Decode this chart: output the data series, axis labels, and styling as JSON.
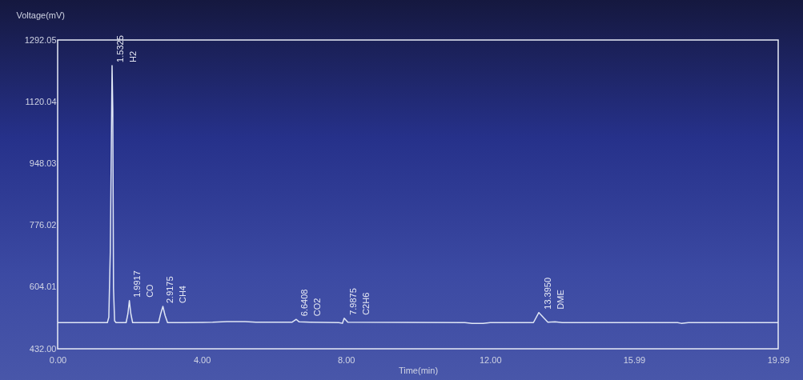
{
  "chart_data": {
    "type": "line",
    "xlabel": "Time(min)",
    "ylabel": "Voltage(mV)",
    "x": [
      0,
      1.38,
      1.42,
      1.46,
      1.49,
      1.51,
      1.53,
      1.55,
      1.58,
      1.62,
      1.9,
      1.95,
      1.99,
      2.03,
      2.08,
      2.8,
      2.86,
      2.92,
      2.98,
      3.05,
      3.5,
      4.3,
      4.7,
      5.2,
      5.5,
      6.5,
      6.62,
      6.7,
      7.0,
      7.8,
      7.9,
      7.95,
      8.05,
      11.3,
      11.5,
      11.8,
      12.0,
      13.2,
      13.35,
      13.6,
      13.8,
      14.0,
      17.2,
      17.3,
      17.5,
      19.99
    ],
    "series": [
      {
        "color": "#dfe6f5",
        "values": [
          505,
          505,
          520,
          700,
          1000,
          1221,
          1100,
          600,
          510,
          505,
          505,
          530,
          566,
          530,
          505,
          505,
          530,
          550,
          525,
          505,
          505,
          506,
          508,
          508,
          506,
          506,
          514,
          507,
          506,
          505,
          503,
          517,
          506,
          505,
          503,
          503,
          505,
          505,
          533,
          506,
          507,
          505,
          505,
          503,
          505,
          505
        ]
      }
    ],
    "xlim": [
      0,
      19.99
    ],
    "ylim": [
      432,
      1292.05
    ],
    "xticks": [
      {
        "value": 0,
        "label": "0.00"
      },
      {
        "value": 4,
        "label": "4.00"
      },
      {
        "value": 8,
        "label": "8.00"
      },
      {
        "value": 12,
        "label": "12.00"
      },
      15.99,
      19.99
    ],
    "yticks": [
      {
        "value": 432,
        "label": "432.00"
      },
      604.01,
      776.02,
      948.03,
      1120.04,
      1292.05
    ],
    "grid": false,
    "marker": "none",
    "line_style": "solid",
    "annotations": [
      {
        "text": "1.5325",
        "x": 1.5325,
        "y": 1221
      },
      {
        "text": "H2",
        "x": 1.5325,
        "y": 1221
      },
      {
        "text": "1.9917",
        "x": 1.9917,
        "y": 566
      },
      {
        "text": "CO",
        "x": 1.9917,
        "y": 566
      },
      {
        "text": "2.9175",
        "x": 2.9175,
        "y": 550
      },
      {
        "text": "CH4",
        "x": 2.9175,
        "y": 550
      },
      {
        "text": "6.6408",
        "x": 6.6408,
        "y": 514
      },
      {
        "text": "CO2",
        "x": 6.6408,
        "y": 514
      },
      {
        "text": "7.9875",
        "x": 7.9875,
        "y": 517
      },
      {
        "text": "C2H6",
        "x": 7.9875,
        "y": 517
      },
      {
        "text": "13.3950",
        "x": 13.395,
        "y": 533
      },
      {
        "text": "DME",
        "x": 13.395,
        "y": 533
      }
    ]
  }
}
